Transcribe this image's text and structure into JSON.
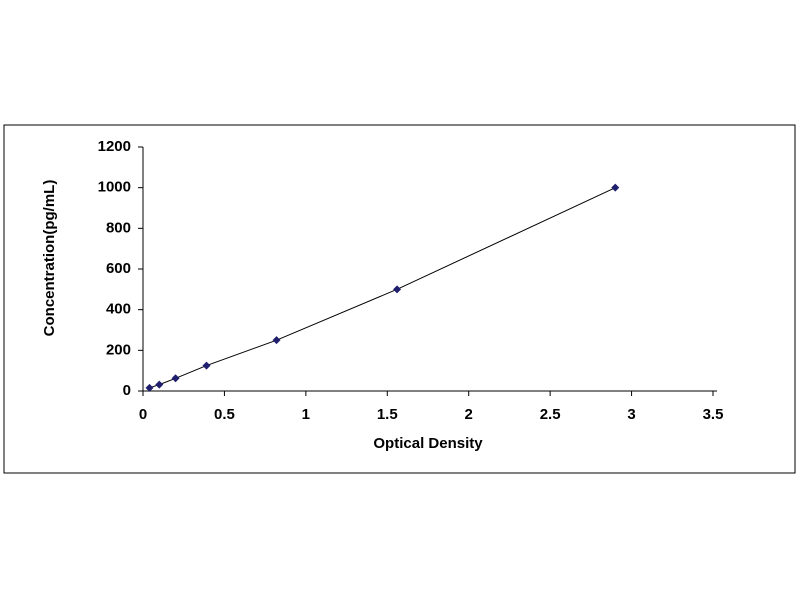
{
  "chart_data": {
    "type": "scatter",
    "x_label": "Optical Density",
    "y_label": "Concentration(pg/mL)",
    "series": [
      {
        "color": "#1f1f6e",
        "x": [
          0.04,
          0.1,
          0.2,
          0.39,
          0.82,
          1.56,
          2.9
        ],
        "values": [
          15.6,
          31.25,
          62.5,
          125,
          250,
          500,
          1000
        ]
      }
    ],
    "xlim": [
      0,
      3.5
    ],
    "xticks": [
      0,
      0.5,
      1,
      1.5,
      2,
      2.5,
      3,
      3.5
    ],
    "ylim": [
      0,
      1200
    ],
    "yticks": [
      0,
      200,
      400,
      600,
      800,
      1000,
      1200
    ],
    "trendline": true
  }
}
